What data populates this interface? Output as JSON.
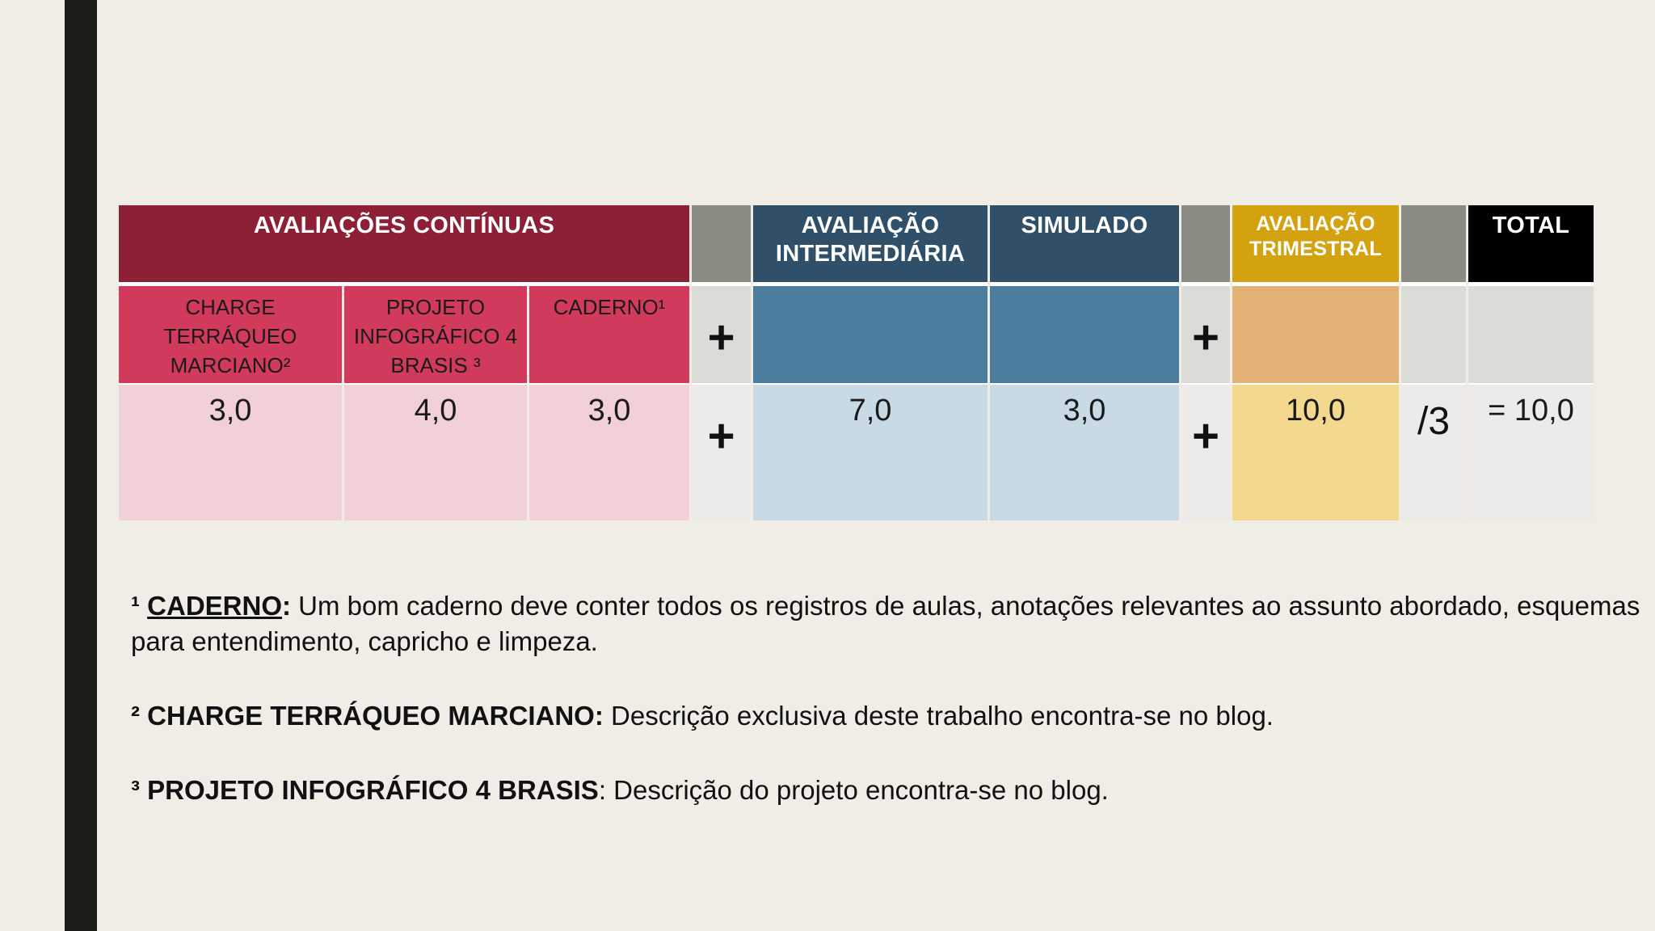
{
  "table": {
    "headers": {
      "continuas": "AVALIAÇÕES CONTÍNUAS",
      "intermediaria": "AVALIAÇÃO INTERMEDIÁRIA",
      "simulado": "SIMULADO",
      "trimestral": "AVALIAÇÃO TRIMESTRAL",
      "total": "TOTAL"
    },
    "subheaders": {
      "charge": "CHARGE TERRÁQUEO MARCIANO²",
      "projeto": "PROJETO INFOGRÁFICO 4 BRASIS ³",
      "caderno": "CADERNO¹"
    },
    "operators": {
      "plus": "+",
      "divide": "/3"
    },
    "values": {
      "charge": "3,0",
      "projeto": "4,0",
      "caderno": "3,0",
      "intermediaria": "7,0",
      "simulado": "3,0",
      "trimestral": "10,0",
      "total": "= 10,0"
    }
  },
  "notes": [
    {
      "marker": "¹",
      "term": "CADERNO",
      "colon": ":",
      "text": " Um bom caderno deve conter todos os registros de aulas, anotações relevantes ao assunto abordado, esquemas para entendimento, capricho e limpeza."
    },
    {
      "marker": "²",
      "term": "CHARGE TERRÁQUEO MARCIANO",
      "colon": ":",
      "text": " Descrição exclusiva deste trabalho encontra-se no blog."
    },
    {
      "marker": "³",
      "term": "PROJETO INFOGRÁFICO 4 BRASIS",
      "colon": ":",
      "text": " Descrição do projeto encontra-se no blog."
    }
  ]
}
